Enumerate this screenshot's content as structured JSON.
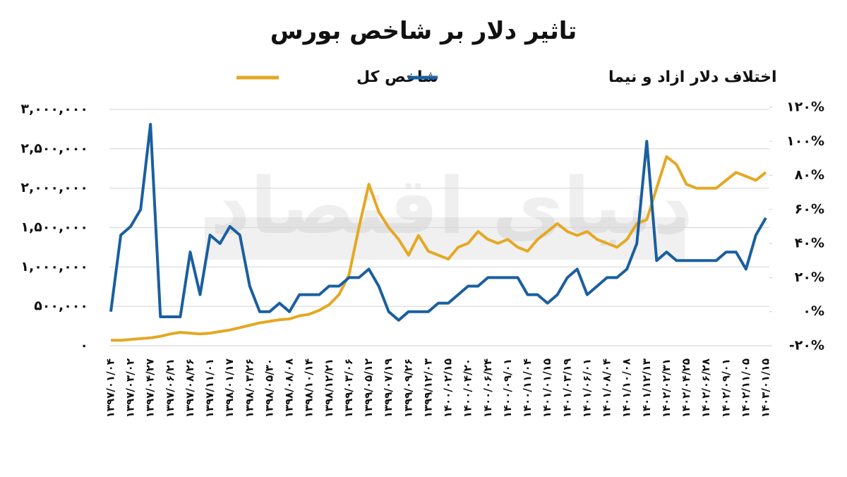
{
  "chart_data": {
    "type": "line",
    "title": "تاثیر دلار بر شاخص بورس",
    "watermark": "دنیای اقتصاد",
    "categories": [
      "۱۳۹۷/۰۱/۰۴",
      null,
      "۱۳۹۷/۰۳/۰۲",
      null,
      "۱۳۹۷/۰۴/۲۷",
      null,
      "۱۳۹۷/۰۶/۲۱",
      null,
      "۱۳۹۷/۰۸/۲۶",
      null,
      "۱۳۹۷/۱۱/۰۱",
      null,
      "۱۳۹۸/۰۱/۱۷",
      null,
      "۱۳۹۸/۰۳/۲۶",
      null,
      "۱۳۹۸/۰۵/۳۰",
      null,
      "۱۳۹۸/۰۸/۰۸",
      null,
      "۱۳۹۸/۱۰/۱۴",
      null,
      "۱۳۹۸/۱۲/۲۱",
      null,
      "۱۳۹۹/۰۳/۰۶",
      null,
      "۱۳۹۹/۰۵/۱۲",
      null,
      "۱۳۹۹/۰۷/۱۹",
      null,
      "۱۳۹۹/۰۹/۲۶",
      null,
      "۱۳۹۹/۱۲/۰۳",
      null,
      "۱۴۰۰/۰۲/۱۵",
      null,
      "۱۴۰۰/۰۴/۲۰",
      null,
      "۱۴۰۰/۰۶/۲۴",
      null,
      "۱۴۰۰/۰۹/۰۱",
      null,
      "۱۴۰۰/۱۱/۰۴",
      null,
      "۱۴۰۱/۰۱/۱۵",
      null,
      "۱۴۰۱/۰۳/۱۹",
      null,
      "۱۴۰۱/۰۶/۰۱",
      null,
      "۱۴۰۱/۰۸/۰۴",
      null,
      "۱۴۰۱/۱۰/۰۸",
      null,
      "۱۴۰۱/۱۲/۱۳",
      null,
      "۱۴۰۲/۰۲/۳۱",
      null,
      "۱۴۰۲/۰۴/۲۵",
      null,
      "۱۴۰۲/۰۶/۲۸",
      null,
      "۱۴۰۲/۰۹/۰۱",
      null,
      "۱۴۰۲/۱۱/۰۵",
      null,
      "۱۴۰۳/۰۱/۱۵"
    ],
    "series": [
      {
        "name": "شاخص کل",
        "color": "#e5a823",
        "values": [
          70000,
          70000,
          80000,
          90000,
          100000,
          120000,
          150000,
          170000,
          160000,
          150000,
          160000,
          180000,
          200000,
          230000,
          260000,
          290000,
          310000,
          330000,
          340000,
          380000,
          400000,
          450000,
          520000,
          650000,
          900000,
          1500000,
          2050000,
          1700000,
          1500000,
          1350000,
          1150000,
          1400000,
          1200000,
          1150000,
          1100000,
          1250000,
          1300000,
          1450000,
          1350000,
          1300000,
          1350000,
          1250000,
          1200000,
          1350000,
          1450000,
          1550000,
          1450000,
          1400000,
          1450000,
          1350000,
          1300000,
          1250000,
          1350000,
          1550000,
          1600000,
          2000000,
          2400000,
          2300000,
          2050000,
          2000000,
          2000000,
          2000000,
          2100000,
          2200000,
          2150000,
          2100000,
          2200000
        ]
      },
      {
        "name": "اختلاف دلار ازاد و نیما",
        "color": "#1a5fa0",
        "axis": "y2",
        "values": [
          0,
          45,
          50,
          60,
          110,
          -3,
          -3,
          -3,
          35,
          10,
          45,
          40,
          50,
          45,
          15,
          0,
          0,
          5,
          0,
          10,
          10,
          10,
          15,
          15,
          20,
          20,
          25,
          15,
          0,
          -5,
          0,
          0,
          0,
          5,
          5,
          10,
          15,
          15,
          20,
          20,
          20,
          20,
          10,
          10,
          5,
          10,
          20,
          25,
          10,
          15,
          20,
          20,
          25,
          40,
          100,
          30,
          35,
          30,
          30,
          30,
          30,
          30,
          35,
          35,
          25,
          45,
          55
        ]
      }
    ],
    "ylim": [
      0,
      3000000
    ],
    "yticks": [
      {
        "value": 0,
        "label": "۰"
      },
      {
        "value": 500000,
        "label": "۵۰۰,۰۰۰"
      },
      {
        "value": 1000000,
        "label": "۱,۰۰۰,۰۰۰"
      },
      {
        "value": 1500000,
        "label": "۱,۵۰۰,۰۰۰"
      },
      {
        "value": 2000000,
        "label": "۲,۰۰۰,۰۰۰"
      },
      {
        "value": 2500000,
        "label": "۲,۵۰۰,۰۰۰"
      },
      {
        "value": 3000000,
        "label": "۳,۰۰۰,۰۰۰"
      }
    ],
    "y2lim": [
      -20,
      120
    ],
    "y2ticks": [
      {
        "value": -20,
        "label": "-۲۰%"
      },
      {
        "value": 0,
        "label": "۰%"
      },
      {
        "value": 20,
        "label": "۲۰%"
      },
      {
        "value": 40,
        "label": "۴۰%"
      },
      {
        "value": 60,
        "label": "۶۰%"
      },
      {
        "value": 80,
        "label": "۸۰%"
      },
      {
        "value": 100,
        "label": "۱۰۰%"
      },
      {
        "value": 120,
        "label": "۱۲۰%"
      }
    ],
    "grid": true
  }
}
